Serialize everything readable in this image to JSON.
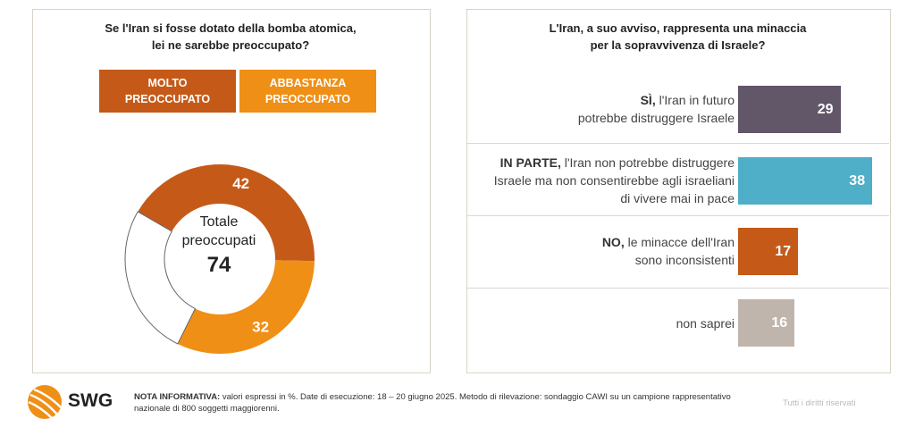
{
  "chart_data": [
    {
      "type": "pie",
      "title": "Se l'Iran si fosse dotato della bomba atomica, lei ne sarebbe preoccupato?",
      "title_lines": [
        "Se l'Iran si fosse dotato della bomba atomica,",
        "lei ne sarebbe preoccupato?"
      ],
      "legend": [
        {
          "line1": "MOLTO",
          "line2": "PREOCCUPATO",
          "color": "#c55a18"
        },
        {
          "line1": "ABBASTANZA",
          "line2": "PREOCCUPATO",
          "color": "#ef8f16"
        }
      ],
      "slices": [
        {
          "name": "Molto preoccupato",
          "value": 42,
          "label": "42",
          "color": "#c55a18"
        },
        {
          "name": "Abbastanza preoccupato",
          "value": 32,
          "label": "32",
          "color": "#ef8f16"
        },
        {
          "name": "Altro",
          "value": 26,
          "label": "",
          "color": "#ffffff"
        }
      ],
      "center_label": {
        "line1": "Totale",
        "line2": "preoccupati",
        "value": "74"
      }
    },
    {
      "type": "bar",
      "orientation": "horizontal",
      "title_lines": [
        "L'Iran, a suo avviso, rappresenta una minaccia",
        "per la sopravvivenza di Israele?"
      ],
      "categories": [
        {
          "bold": "SÌ,",
          "lines": [
            " l'Iran in futuro",
            "potrebbe distruggere Israele"
          ]
        },
        {
          "bold": "IN PARTE,",
          "lines": [
            " l'Iran non potrebbe distruggere",
            "Israele ma non consentirebbe agli israeliani",
            "di vivere mai in pace"
          ]
        },
        {
          "bold": "NO,",
          "lines": [
            " le minacce dell'Iran",
            "sono inconsistenti"
          ]
        },
        {
          "bold": "",
          "lines": [
            "non saprei"
          ]
        }
      ],
      "values": [
        29,
        38,
        17,
        16
      ],
      "labels": [
        "29",
        "38",
        "17",
        "16"
      ],
      "colors": [
        "#625669",
        "#4faec8",
        "#c55a18",
        "#bfb5ad"
      ]
    }
  ],
  "footer": {
    "logo": "SWG",
    "note_label": "NOTA INFORMATIVA:",
    "note_text": " valori espressi in %. Date di esecuzione: 18 – 20 giugno 2025. Metodo di rilevazione: sondaggio CAWI su un campione rappresentativo nazionale di 800 soggetti maggiorenni.",
    "rights": "Tutti i diritti riservati"
  }
}
